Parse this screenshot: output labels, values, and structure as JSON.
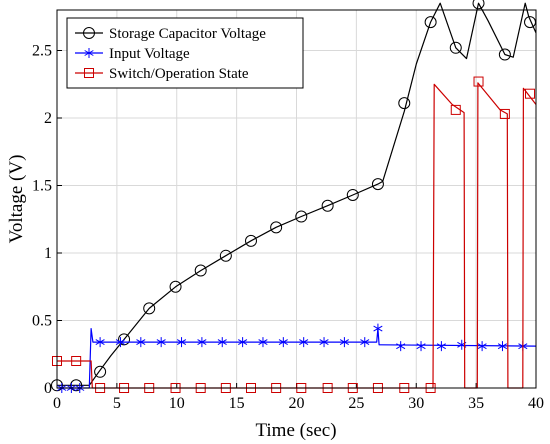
{
  "chart_data": {
    "type": "line",
    "title": "",
    "xlabel": "Time (sec)",
    "ylabel": "Voltage (V)",
    "xlim": [
      0,
      40
    ],
    "ylim": [
      0,
      2.8
    ],
    "xticks": [
      0,
      5,
      10,
      15,
      20,
      25,
      30,
      35,
      40
    ],
    "yticks": [
      0,
      0.5,
      1,
      1.5,
      2,
      2.5
    ],
    "ytick_labels": [
      "0",
      "0.5",
      "1",
      "1.5",
      "2",
      "2.5"
    ],
    "grid": true,
    "legend_position": "top-left",
    "series": [
      {
        "name": "Storage Capacitor Voltage",
        "color": "#000000",
        "marker": "circle",
        "line": [
          [
            0,
            0.02
          ],
          [
            1,
            0.02
          ],
          [
            2,
            0.02
          ],
          [
            2.7,
            0.02
          ],
          [
            3.5,
            0.12
          ],
          [
            4.5,
            0.24
          ],
          [
            5.6,
            0.36
          ],
          [
            7.7,
            0.59
          ],
          [
            9.9,
            0.75
          ],
          [
            12,
            0.87
          ],
          [
            14.1,
            0.98
          ],
          [
            16.2,
            1.09
          ],
          [
            18.3,
            1.19
          ],
          [
            20.4,
            1.27
          ],
          [
            22.6,
            1.35
          ],
          [
            24.7,
            1.43
          ],
          [
            26.8,
            1.51
          ],
          [
            27.2,
            1.53
          ],
          [
            29,
            2.05
          ],
          [
            30,
            2.4
          ],
          [
            31.2,
            2.71
          ],
          [
            32,
            2.85
          ],
          [
            33.3,
            2.52
          ],
          [
            34.2,
            2.44
          ],
          [
            35.2,
            2.85
          ],
          [
            36,
            2.72
          ],
          [
            37.4,
            2.47
          ],
          [
            38.1,
            2.45
          ],
          [
            39.1,
            2.85
          ],
          [
            39.4,
            2.75
          ],
          [
            40,
            2.63
          ]
        ],
        "markers": [
          [
            0,
            0.02
          ],
          [
            1.6,
            0.02
          ],
          [
            3.6,
            0.12
          ],
          [
            5.6,
            0.36
          ],
          [
            7.7,
            0.59
          ],
          [
            9.9,
            0.75
          ],
          [
            12,
            0.87
          ],
          [
            14.1,
            0.98
          ],
          [
            16.2,
            1.09
          ],
          [
            18.3,
            1.19
          ],
          [
            20.4,
            1.27
          ],
          [
            22.6,
            1.35
          ],
          [
            24.7,
            1.43
          ],
          [
            26.8,
            1.51
          ],
          [
            29,
            2.11
          ],
          [
            31.2,
            2.71
          ],
          [
            33.3,
            2.52
          ],
          [
            35.2,
            2.85
          ],
          [
            37.4,
            2.47
          ],
          [
            39.5,
            2.71
          ]
        ]
      },
      {
        "name": "Input Voltage",
        "color": "#0000ff",
        "marker": "asterisk",
        "line": [
          [
            0,
            0.0
          ],
          [
            2.7,
            0.0
          ],
          [
            2.85,
            0.44
          ],
          [
            3.0,
            0.34
          ],
          [
            26.7,
            0.34
          ],
          [
            26.8,
            0.44
          ],
          [
            26.9,
            0.32
          ],
          [
            40,
            0.31
          ]
        ],
        "markers": [
          [
            0.4,
            0.0
          ],
          [
            1.2,
            0.0
          ],
          [
            1.9,
            0.0
          ],
          [
            3.6,
            0.34
          ],
          [
            5.3,
            0.34
          ],
          [
            7.0,
            0.34
          ],
          [
            8.7,
            0.34
          ],
          [
            10.4,
            0.34
          ],
          [
            12.1,
            0.34
          ],
          [
            13.8,
            0.34
          ],
          [
            15.5,
            0.34
          ],
          [
            17.2,
            0.34
          ],
          [
            18.9,
            0.34
          ],
          [
            20.6,
            0.34
          ],
          [
            22.3,
            0.34
          ],
          [
            24.0,
            0.34
          ],
          [
            25.7,
            0.34
          ],
          [
            26.8,
            0.44
          ],
          [
            28.7,
            0.31
          ],
          [
            30.4,
            0.31
          ],
          [
            32.1,
            0.31
          ],
          [
            33.8,
            0.32
          ],
          [
            35.5,
            0.31
          ],
          [
            37.2,
            0.31
          ],
          [
            38.9,
            0.31
          ]
        ]
      },
      {
        "name": "Switch/Operation State",
        "color": "#cc0000",
        "marker": "square",
        "line": [
          [
            0,
            0.2
          ],
          [
            2.85,
            0.2
          ],
          [
            2.95,
            0.0
          ],
          [
            31.4,
            0.0
          ],
          [
            31.5,
            2.25
          ],
          [
            33,
            2.1
          ],
          [
            34,
            2.04
          ],
          [
            34.05,
            0.0
          ],
          [
            35.1,
            0.0
          ],
          [
            35.15,
            2.26
          ],
          [
            37,
            2.06
          ],
          [
            37.6,
            2.03
          ],
          [
            37.65,
            0.0
          ],
          [
            38.9,
            0.0
          ],
          [
            38.95,
            2.22
          ],
          [
            40,
            2.1
          ]
        ],
        "markers": [
          [
            0,
            0.2
          ],
          [
            1.6,
            0.2
          ],
          [
            3.6,
            0.0
          ],
          [
            5.6,
            0.0
          ],
          [
            7.7,
            0.0
          ],
          [
            9.9,
            0.0
          ],
          [
            12,
            0.0
          ],
          [
            14.1,
            0.0
          ],
          [
            16.2,
            0.0
          ],
          [
            18.3,
            0.0
          ],
          [
            20.4,
            0.0
          ],
          [
            22.6,
            0.0
          ],
          [
            24.7,
            0.0
          ],
          [
            26.8,
            0.0
          ],
          [
            29,
            0.0
          ],
          [
            31.2,
            0.0
          ],
          [
            33.3,
            2.06
          ],
          [
            35.2,
            2.27
          ],
          [
            37.4,
            2.03
          ],
          [
            39.5,
            2.18
          ]
        ]
      }
    ]
  }
}
